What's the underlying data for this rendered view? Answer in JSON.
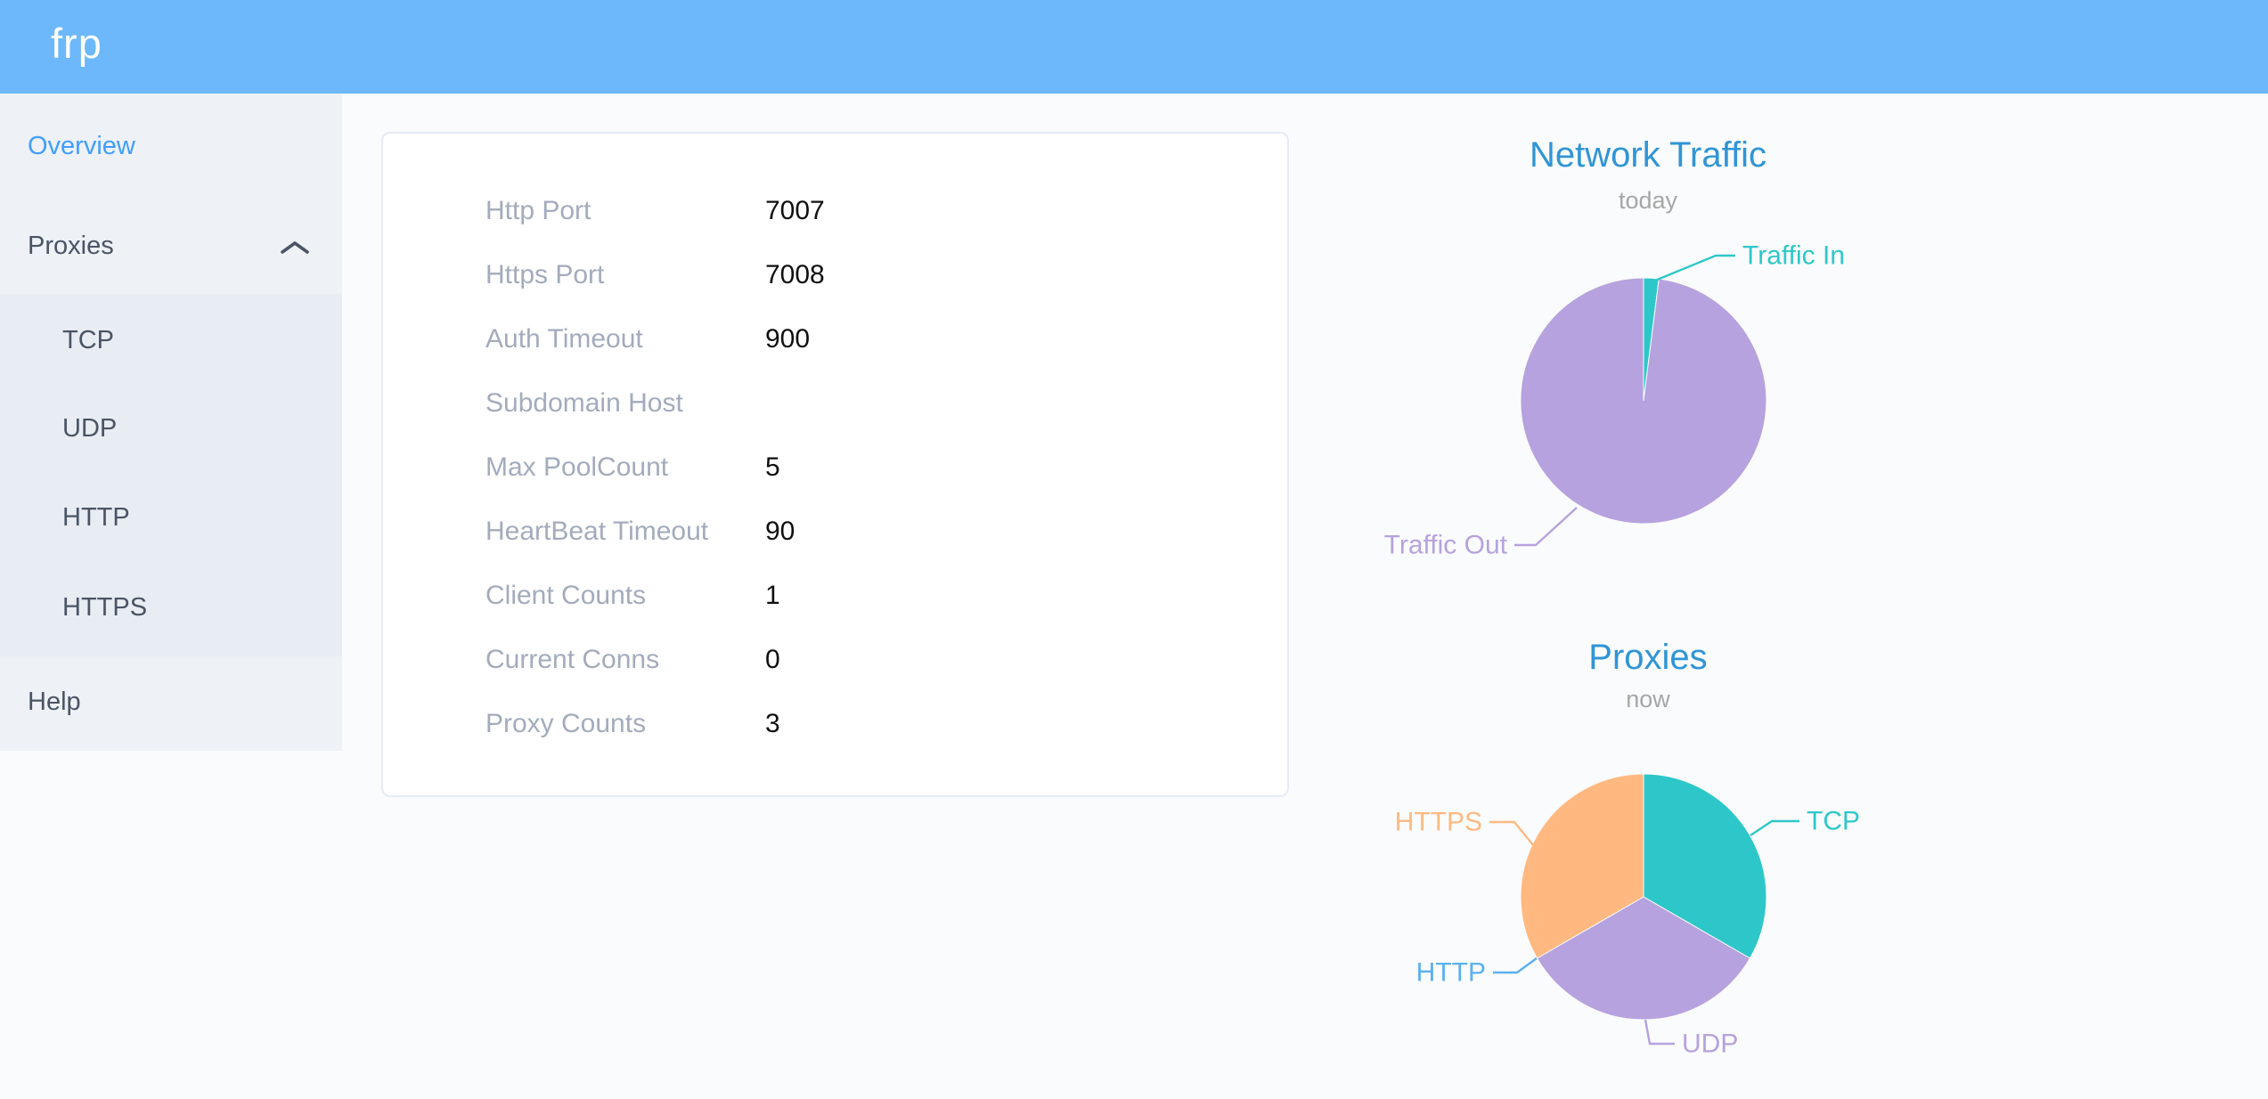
{
  "header": {
    "logo_text": "frp",
    "bg_color": "#6cb8fa"
  },
  "sidebar": {
    "accent_color": "#409eff",
    "items": [
      {
        "label": "Overview",
        "active": true
      },
      {
        "label": "Proxies",
        "expanded": true,
        "children": [
          "TCP",
          "UDP",
          "HTTP",
          "HTTPS"
        ]
      },
      {
        "label": "Help"
      }
    ]
  },
  "overview_card": {
    "rows": [
      {
        "label": "Http Port",
        "value": "7007"
      },
      {
        "label": "Https Port",
        "value": "7008"
      },
      {
        "label": "Auth Timeout",
        "value": "900"
      },
      {
        "label": "Subdomain Host",
        "value": ""
      },
      {
        "label": "Max PoolCount",
        "value": "5"
      },
      {
        "label": "HeartBeat Timeout",
        "value": "90"
      },
      {
        "label": "Client Counts",
        "value": "1"
      },
      {
        "label": "Current Conns",
        "value": "0"
      },
      {
        "label": "Proxy Counts",
        "value": "3"
      }
    ]
  },
  "chart_data": [
    {
      "type": "pie",
      "title": "Network Traffic",
      "subtitle": "today",
      "legend_position": "callout-labels",
      "series": [
        {
          "name": "Traffic In",
          "value": 2,
          "color": "#2ec7c9"
        },
        {
          "name": "Traffic Out",
          "value": 98,
          "color": "#b6a2de"
        }
      ],
      "value_unit": "percent-of-pie (estimated from slice angles)"
    },
    {
      "type": "pie",
      "title": "Proxies",
      "subtitle": "now",
      "legend_position": "callout-labels",
      "series": [
        {
          "name": "TCP",
          "value": 1,
          "color": "#2ec7c9"
        },
        {
          "name": "UDP",
          "value": 1,
          "color": "#b6a2de"
        },
        {
          "name": "HTTP",
          "value": 0,
          "color": "#5ab1ef"
        },
        {
          "name": "HTTPS",
          "value": 1,
          "color": "#ffb980"
        }
      ],
      "value_unit": "proxy count"
    }
  ]
}
